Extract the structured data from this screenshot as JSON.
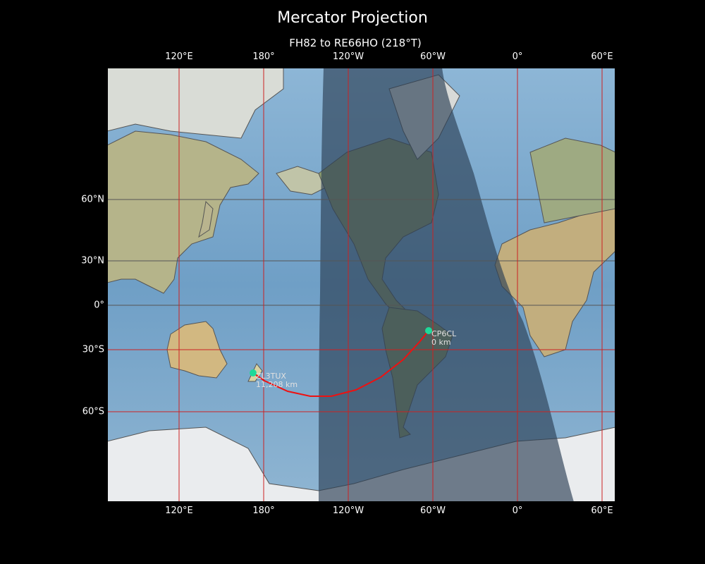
{
  "title": "Mercator Projection",
  "subtitle": "FH82 to RE66HO (218°T)",
  "projection": "Mercator",
  "lon_ticks": [
    "120°E",
    "180°",
    "120°W",
    "60°W",
    "0°",
    "60°E"
  ],
  "lat_ticks": [
    "60°N",
    "30°N",
    "0°",
    "30°S",
    "60°S"
  ],
  "stations": [
    {
      "call": "ZL3TUX",
      "distance": "11,208 km"
    },
    {
      "call": "CP6CL",
      "distance": "0 km"
    }
  ],
  "colors": {
    "path": "#ee1111",
    "marker": "#1ed999",
    "grid": "#cc2222",
    "night": "#2b3f55"
  }
}
